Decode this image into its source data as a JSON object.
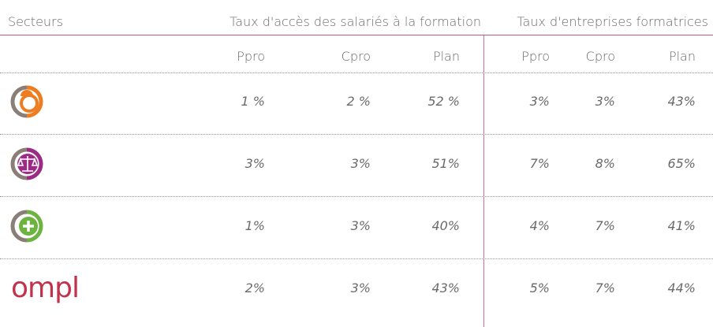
{
  "header": {
    "sector": "Secteurs",
    "group1": "Taux d'accès des salariés à la formation",
    "group2": "Taux d'entreprises formatrices"
  },
  "subheaders": [
    "Ppro",
    "Cpro",
    "Plan",
    "Ppro",
    "Cpro",
    "Plan"
  ],
  "rows": [
    {
      "cells": [
        "1 %",
        "2 %",
        "52 %",
        "3%",
        "3%",
        "43%"
      ]
    },
    {
      "cells": [
        "3%",
        "3%",
        "51%",
        "7%",
        "8%",
        "65%"
      ]
    },
    {
      "cells": [
        "1%",
        "3%",
        "40%",
        "4%",
        "7%",
        "41%"
      ]
    },
    {
      "logo": "ompl",
      "cells": [
        "2%",
        "3%",
        "43%",
        "5%",
        "7%",
        "44%"
      ]
    }
  ]
}
